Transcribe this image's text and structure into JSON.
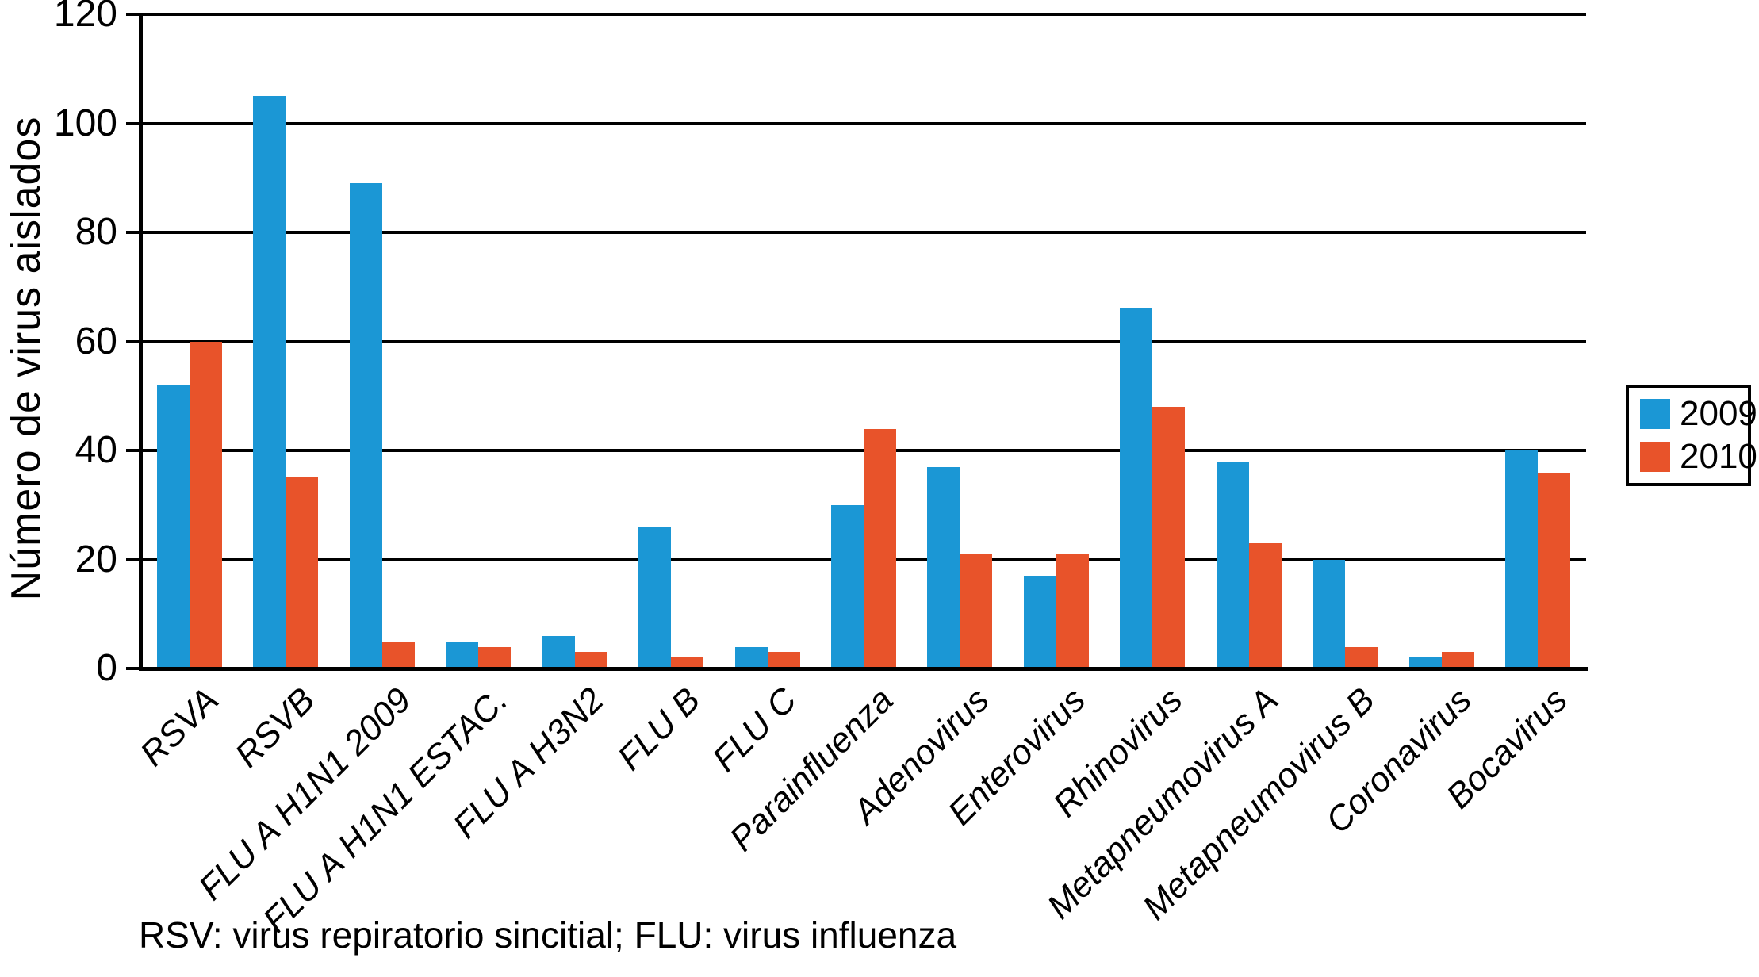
{
  "chart_data": {
    "type": "bar",
    "title": "",
    "xlabel": "",
    "ylabel": "Número de virus aislados",
    "ylim": [
      0,
      120
    ],
    "yticks": [
      0,
      20,
      40,
      60,
      80,
      100,
      120
    ],
    "grid": "horizontal",
    "gridline_color": "#000000",
    "axis_color": "#000000",
    "background_color": "#ffffff",
    "legend_position": "right-outside",
    "bar_label_style": "rotated-45-italic",
    "categories": [
      "RSVA",
      "RSVB",
      "FLU A H1N1 2009",
      "FLU A H1N1 ESTAC.",
      "FLU A H3N2",
      "FLU B",
      "FLU C",
      "Parainfluenza",
      "Adenovirus",
      "Enterovirus",
      "Rhinovirus",
      "Metapneumovirus A",
      "Metapneumovirus B",
      "Coronavirus",
      "Bocavirus"
    ],
    "series": [
      {
        "name": "2009",
        "color": "#1b97d5",
        "values": [
          52,
          105,
          89,
          5,
          6,
          26,
          4,
          30,
          37,
          17,
          66,
          38,
          20,
          2,
          40
        ]
      },
      {
        "name": "2010",
        "color": "#e8532a",
        "values": [
          60,
          35,
          5,
          4,
          3,
          2,
          3,
          44,
          21,
          21,
          48,
          23,
          4,
          3,
          36
        ]
      }
    ],
    "footnote": "RSV: virus repiratorio sincitial; FLU: virus influenza"
  }
}
